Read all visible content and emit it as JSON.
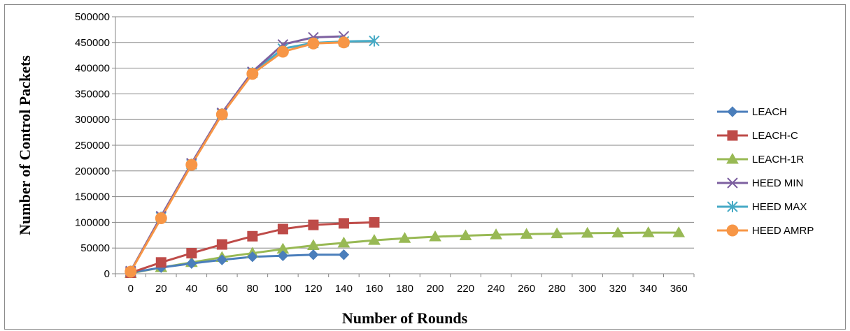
{
  "chart_data": {
    "type": "line",
    "xlabel": "Number of Rounds",
    "ylabel": "Number of Control Packets",
    "x_ticks": [
      "0",
      "20",
      "40",
      "60",
      "80",
      "100",
      "120",
      "140",
      "160",
      "180",
      "200",
      "220",
      "240",
      "260",
      "280",
      "300",
      "320",
      "340",
      "360"
    ],
    "y_ticks": [
      "0",
      "50000",
      "100000",
      "150000",
      "200000",
      "250000",
      "300000",
      "350000",
      "400000",
      "450000",
      "500000"
    ],
    "ylim": [
      0,
      500000
    ],
    "xlim": [
      0,
      360
    ],
    "grid": "horizontal",
    "legend_position": "right",
    "series": [
      {
        "name": "LEACH",
        "color": "#4a7ebb",
        "marker": "diamond",
        "x": [
          0,
          20,
          40,
          60,
          80,
          100,
          120,
          140
        ],
        "y": [
          2000,
          12000,
          20000,
          27000,
          33000,
          35000,
          37000,
          37000
        ]
      },
      {
        "name": "LEACH-C",
        "color": "#be4b48",
        "marker": "square",
        "x": [
          0,
          20,
          40,
          60,
          80,
          100,
          120,
          140,
          160
        ],
        "y": [
          2000,
          22000,
          40000,
          57000,
          73000,
          87000,
          95000,
          98000,
          100000
        ]
      },
      {
        "name": "LEACH-1R",
        "color": "#98b954",
        "marker": "triangle",
        "x": [
          0,
          20,
          40,
          60,
          80,
          100,
          120,
          140,
          160,
          180,
          200,
          220,
          240,
          260,
          280,
          300,
          320,
          340,
          360
        ],
        "y": [
          1000,
          12000,
          22000,
          32000,
          40000,
          48000,
          55000,
          60000,
          65000,
          69000,
          72000,
          74000,
          76000,
          77000,
          78000,
          79000,
          79500,
          80000,
          80000
        ]
      },
      {
        "name": "HEED MIN",
        "color": "#7d60a0",
        "marker": "x",
        "x": [
          0,
          20,
          40,
          60,
          80,
          100,
          120,
          140
        ],
        "y": [
          5000,
          112000,
          215000,
          313000,
          393000,
          446000,
          460000,
          462000
        ]
      },
      {
        "name": "HEED MAX",
        "color": "#46aac5",
        "marker": "star",
        "x": [
          0,
          20,
          40,
          60,
          80,
          100,
          120,
          140,
          160
        ],
        "y": [
          5000,
          110000,
          213000,
          311000,
          391000,
          438000,
          449000,
          452000,
          453000
        ]
      },
      {
        "name": "HEED AMRP",
        "color": "#f79646",
        "marker": "circle",
        "x": [
          0,
          20,
          40,
          60,
          80,
          100,
          120,
          140
        ],
        "y": [
          4000,
          108000,
          212000,
          310000,
          389000,
          432000,
          448000,
          450000
        ]
      }
    ]
  }
}
